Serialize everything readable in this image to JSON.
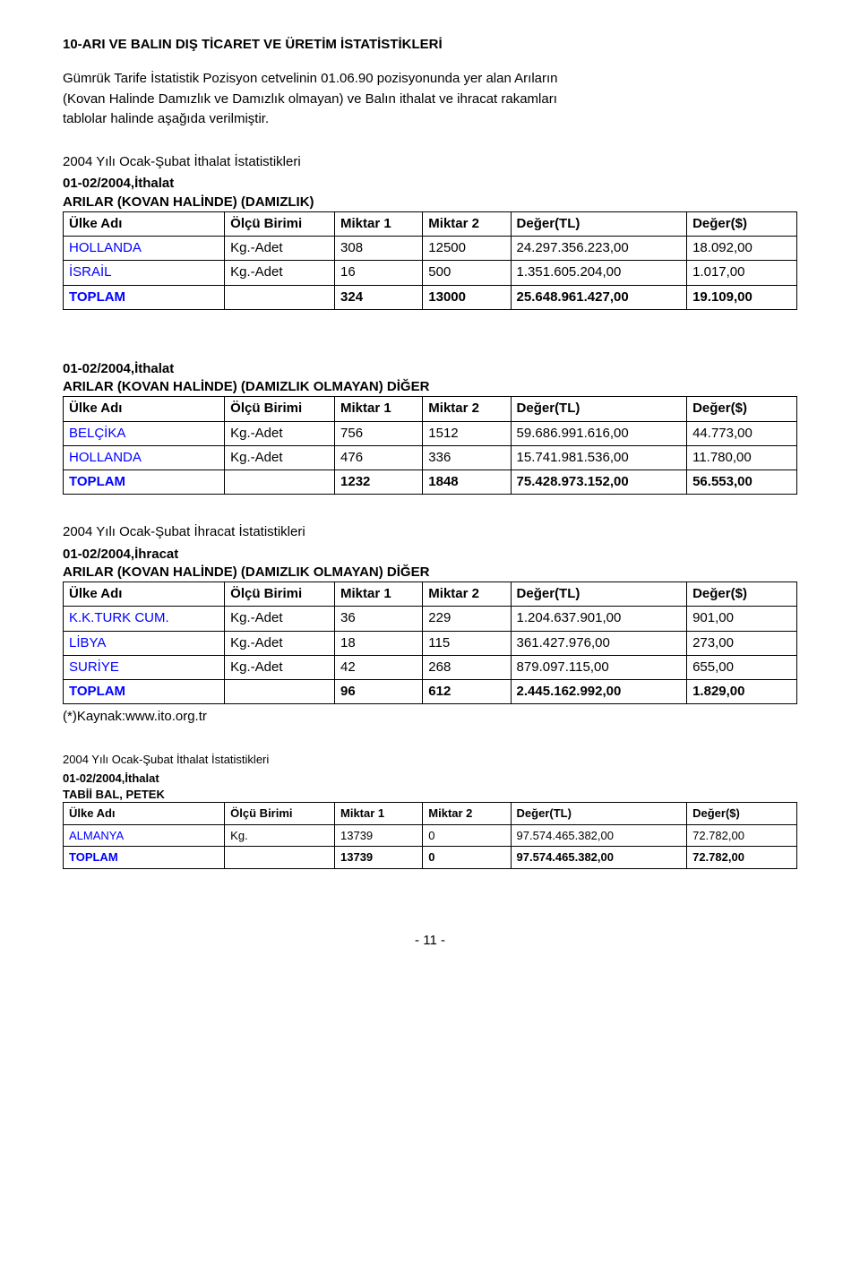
{
  "colors": {
    "background": "#ffffff",
    "text": "#000000",
    "border": "#000000"
  },
  "typography": {
    "font_family": "Arial",
    "body_fontsize_pt": 11,
    "small_fontsize_pt": 9
  },
  "title": "10-ARI VE BALIN DIŞ TİCARET VE ÜRETİM İSTATİSTİKLERİ",
  "intro_lines": [
    "Gümrük Tarife İstatistik Pozisyon cetvelinin 01.06.90 pozisyonunda yer alan Arıların",
    "(Kovan Halinde Damızlık ve Damızlık olmayan) ve Balın  ithalat ve ihracat rakamları",
    "tablolar halinde aşağıda verilmiştir."
  ],
  "columns": {
    "country": "Ülke Adı",
    "unit": "Ölçü Birimi",
    "m1": "Miktar 1",
    "m2": "Miktar 2",
    "vtl": "Değer(TL)",
    "vusd": "Değer($)"
  },
  "tables": [
    {
      "section_heading": "2004 Yılı Ocak-Şubat İthalat İstatistikleri",
      "preheader": [
        "01-02/2004,İthalat",
        "ARILAR (KOVAN HALİNDE) (DAMIZLIK)"
      ],
      "rows": [
        {
          "country": "HOLLANDA",
          "unit": "Kg.-Adet",
          "m1": "308",
          "m2": "12500",
          "vtl": "24.297.356.223,00",
          "vusd": "18.092,00",
          "color": "#0000ff"
        },
        {
          "country": "İSRAİL",
          "unit": "Kg.-Adet",
          "m1": "16",
          "m2": "500",
          "vtl": "1.351.605.204,00",
          "vusd": "1.017,00",
          "color": "#0000ff"
        }
      ],
      "total": {
        "label": "TOPLAM",
        "m1": "324",
        "m2": "13000",
        "vtl": "25.648.961.427,00",
        "vusd": "19.109,00",
        "color": "#0000ff"
      }
    },
    {
      "section_heading": "",
      "preheader": [
        "01-02/2004,İthalat",
        "ARILAR (KOVAN HALİNDE) (DAMIZLIK OLMAYAN) DİĞER"
      ],
      "rows": [
        {
          "country": "BELÇİKA",
          "unit": "Kg.-Adet",
          "m1": "756",
          "m2": "1512",
          "vtl": "59.686.991.616,00",
          "vusd": "44.773,00",
          "color": "#0000ff"
        },
        {
          "country": "HOLLANDA",
          "unit": "Kg.-Adet",
          "m1": "476",
          "m2": "336",
          "vtl": "15.741.981.536,00",
          "vusd": "11.780,00",
          "color": "#0000ff"
        }
      ],
      "total": {
        "label": "TOPLAM",
        "m1": "1232",
        "m2": "1848",
        "vtl": "75.428.973.152,00",
        "vusd": "56.553,00",
        "color": "#0000ff"
      }
    },
    {
      "section_heading": "2004 Yılı Ocak-Şubat İhracat İstatistikleri",
      "preheader": [
        "01-02/2004,İhracat",
        "ARILAR (KOVAN HALİNDE) (DAMIZLIK OLMAYAN) DİĞER"
      ],
      "rows": [
        {
          "country": "K.K.TURK CUM.",
          "unit": "Kg.-Adet",
          "m1": "36",
          "m2": "229",
          "vtl": "1.204.637.901,00",
          "vusd": "901,00",
          "color": "#0000ff"
        },
        {
          "country": "LİBYA",
          "unit": "Kg.-Adet",
          "m1": "18",
          "m2": "115",
          "vtl": "361.427.976,00",
          "vusd": "273,00",
          "color": "#0000ff"
        },
        {
          "country": "SURİYE",
          "unit": "Kg.-Adet",
          "m1": "42",
          "m2": "268",
          "vtl": "879.097.115,00",
          "vusd": "655,00",
          "color": "#0000ff"
        }
      ],
      "total": {
        "label": "TOPLAM",
        "m1": "96",
        "m2": "612",
        "vtl": "2.445.162.992,00",
        "vusd": "1.829,00",
        "color": "#0000ff"
      },
      "footnote": "(*)Kaynak:www.ito.org.tr"
    },
    {
      "section_heading": "2004 Yılı Ocak-Şubat İthalat İstatistikleri",
      "small": true,
      "preheader": [
        "01-02/2004,İthalat",
        "TABİİ BAL, PETEK"
      ],
      "rows": [
        {
          "country": "ALMANYA",
          "unit": "Kg.",
          "m1": "13739",
          "m2": "0",
          "vtl": "97.574.465.382,00",
          "vusd": "72.782,00",
          "color": "#0000ff"
        }
      ],
      "total": {
        "label": "TOPLAM",
        "m1": "13739",
        "m2": "0",
        "vtl": "97.574.465.382,00",
        "vusd": "72.782,00",
        "color": "#0000ff"
      }
    }
  ],
  "page_number": "- 11 -"
}
